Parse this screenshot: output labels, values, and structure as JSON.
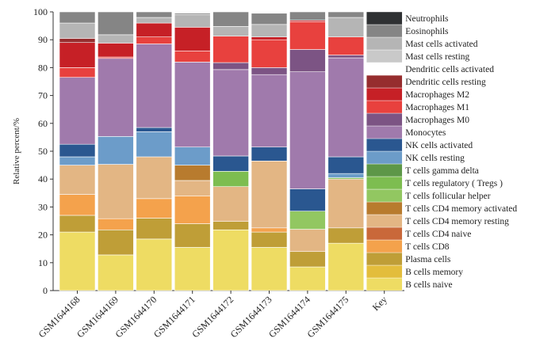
{
  "chart_data": {
    "type": "stacked-bar",
    "ylabel": "Relative percent/%",
    "xlabel": "",
    "ylim": [
      0,
      100
    ],
    "yticks": [
      0,
      10,
      20,
      30,
      40,
      50,
      60,
      70,
      80,
      90,
      100
    ],
    "categories": [
      "GSM1644168",
      "GSM1644169",
      "GSM1644170",
      "GSM1644171",
      "GSM1644172",
      "GSM1644173",
      "GSM1644174",
      "GSM1644175"
    ],
    "key_label": "Key",
    "series": [
      {
        "name": "B cells naive",
        "color": "#EEDC63",
        "values": [
          21,
          12.8,
          18.5,
          15.5,
          21.8,
          15.5,
          8.5,
          17
        ]
      },
      {
        "name": "B cells memory",
        "color": "#E3BD3C",
        "values": [
          0,
          0,
          0,
          0,
          0,
          0,
          0,
          0
        ]
      },
      {
        "name": "Plasma cells",
        "color": "#BF9E37",
        "values": [
          6,
          9,
          7.5,
          8.5,
          3,
          5.5,
          5.5,
          5.5
        ]
      },
      {
        "name": "T cells CD8",
        "color": "#F4A24C",
        "values": [
          7.5,
          4,
          7,
          10,
          0,
          1.5,
          0,
          0
        ]
      },
      {
        "name": "T cells CD4 naive",
        "color": "#C9683A",
        "values": [
          0,
          0,
          0,
          0,
          0,
          0,
          0,
          0
        ]
      },
      {
        "name": "T cells CD4 memory resting",
        "color": "#E3B684",
        "values": [
          10.5,
          19.5,
          15,
          5.5,
          12.5,
          24,
          8,
          17.5
        ]
      },
      {
        "name": "T cells CD4 memory activated",
        "color": "#B87B2E",
        "values": [
          0,
          0,
          0,
          5.5,
          0,
          0,
          0,
          0
        ]
      },
      {
        "name": "T cells follicular helper",
        "color": "#92C761",
        "values": [
          0,
          0,
          0,
          0,
          0,
          0,
          6.5,
          0
        ]
      },
      {
        "name": "T cells regulatory ( Tregs )",
        "color": "#7DBD50",
        "values": [
          0,
          0,
          0,
          0,
          5.5,
          0,
          0,
          0.5
        ]
      },
      {
        "name": "T cells gamma delta",
        "color": "#5D9748",
        "values": [
          0,
          0,
          0,
          0,
          0,
          0,
          0,
          0
        ]
      },
      {
        "name": "NK cells resting",
        "color": "#6C9CC9",
        "values": [
          3,
          10,
          9,
          6.5,
          0,
          0,
          0,
          1.5
        ]
      },
      {
        "name": "NK cells activated",
        "color": "#2A5790",
        "values": [
          4.5,
          0,
          1.5,
          0,
          5.5,
          5,
          8,
          6
        ]
      },
      {
        "name": "Monocytes",
        "color": "#A07AAC",
        "values": [
          24,
          28,
          30,
          30.5,
          31,
          26,
          42,
          35.5
        ]
      },
      {
        "name": "Macrophages M0",
        "color": "#7C5484",
        "values": [
          0,
          0,
          0,
          0,
          2.5,
          2.5,
          8,
          1
        ]
      },
      {
        "name": "Macrophages M1",
        "color": "#E8413E",
        "values": [
          3.5,
          0.5,
          2.5,
          4,
          9.5,
          10,
          10,
          6.5
        ]
      },
      {
        "name": "Macrophages M2",
        "color": "#C62026",
        "values": [
          9,
          5,
          5,
          8.5,
          0,
          1,
          0.5,
          0
        ]
      },
      {
        "name": "Dendritic cells resting",
        "color": "#962D2E",
        "values": [
          1.5,
          0,
          0,
          0,
          0,
          0,
          0,
          0
        ]
      },
      {
        "name": "Dendritic cells activated",
        "color": "#FFFFFF",
        "values": [
          0,
          0,
          0,
          0,
          0,
          0,
          0,
          0
        ]
      },
      {
        "name": "Mast cells resting",
        "color": "#C9C9C9",
        "values": [
          0,
          0,
          0,
          0,
          0,
          0,
          0,
          0
        ]
      },
      {
        "name": "Mast cells activated",
        "color": "#B5B5B5",
        "values": [
          5.5,
          3,
          2,
          4.5,
          3.5,
          4.5,
          0,
          7
        ]
      },
      {
        "name": "Eosinophils",
        "color": "#858585",
        "values": [
          4,
          8.2,
          2,
          0.5,
          5.2,
          4,
          3,
          2
        ]
      },
      {
        "name": "Neutrophils",
        "color": "#2F3133",
        "values": [
          0,
          0,
          0,
          0,
          0,
          0,
          0,
          0
        ]
      }
    ]
  }
}
